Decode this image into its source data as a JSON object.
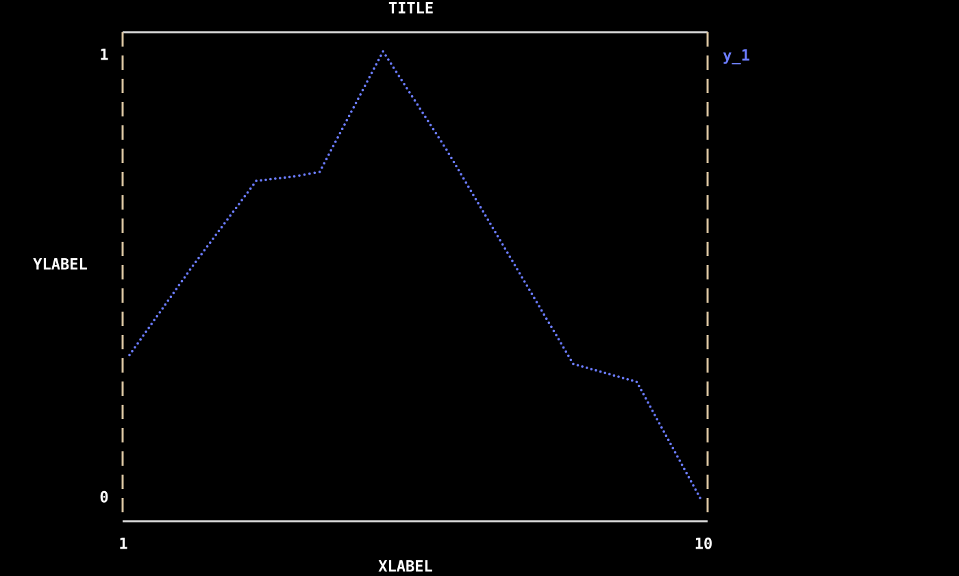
{
  "chart_data": {
    "type": "line",
    "title": "TITLE",
    "xlabel": "XLABEL",
    "ylabel": "YLABEL",
    "xlim": [
      1,
      10
    ],
    "ylim": [
      0,
      1
    ],
    "xticks": [
      "1",
      "10"
    ],
    "yticks": [
      "0",
      "1"
    ],
    "grid": false,
    "legend_placement": "top-right",
    "x": [
      1,
      2,
      3,
      3.6,
      4,
      5,
      6,
      7,
      8,
      9,
      10
    ],
    "series": [
      {
        "name": "y_1",
        "color": "#6b7cff",
        "marker": "dot",
        "values": [
          0.32,
          0.52,
          0.71,
          0.72,
          0.73,
          1.0,
          0.78,
          0.54,
          0.3,
          0.26,
          0.0
        ]
      }
    ],
    "colors": {
      "background": "#000000",
      "axes": "#d8d8d8",
      "text": "#ffffff"
    }
  }
}
